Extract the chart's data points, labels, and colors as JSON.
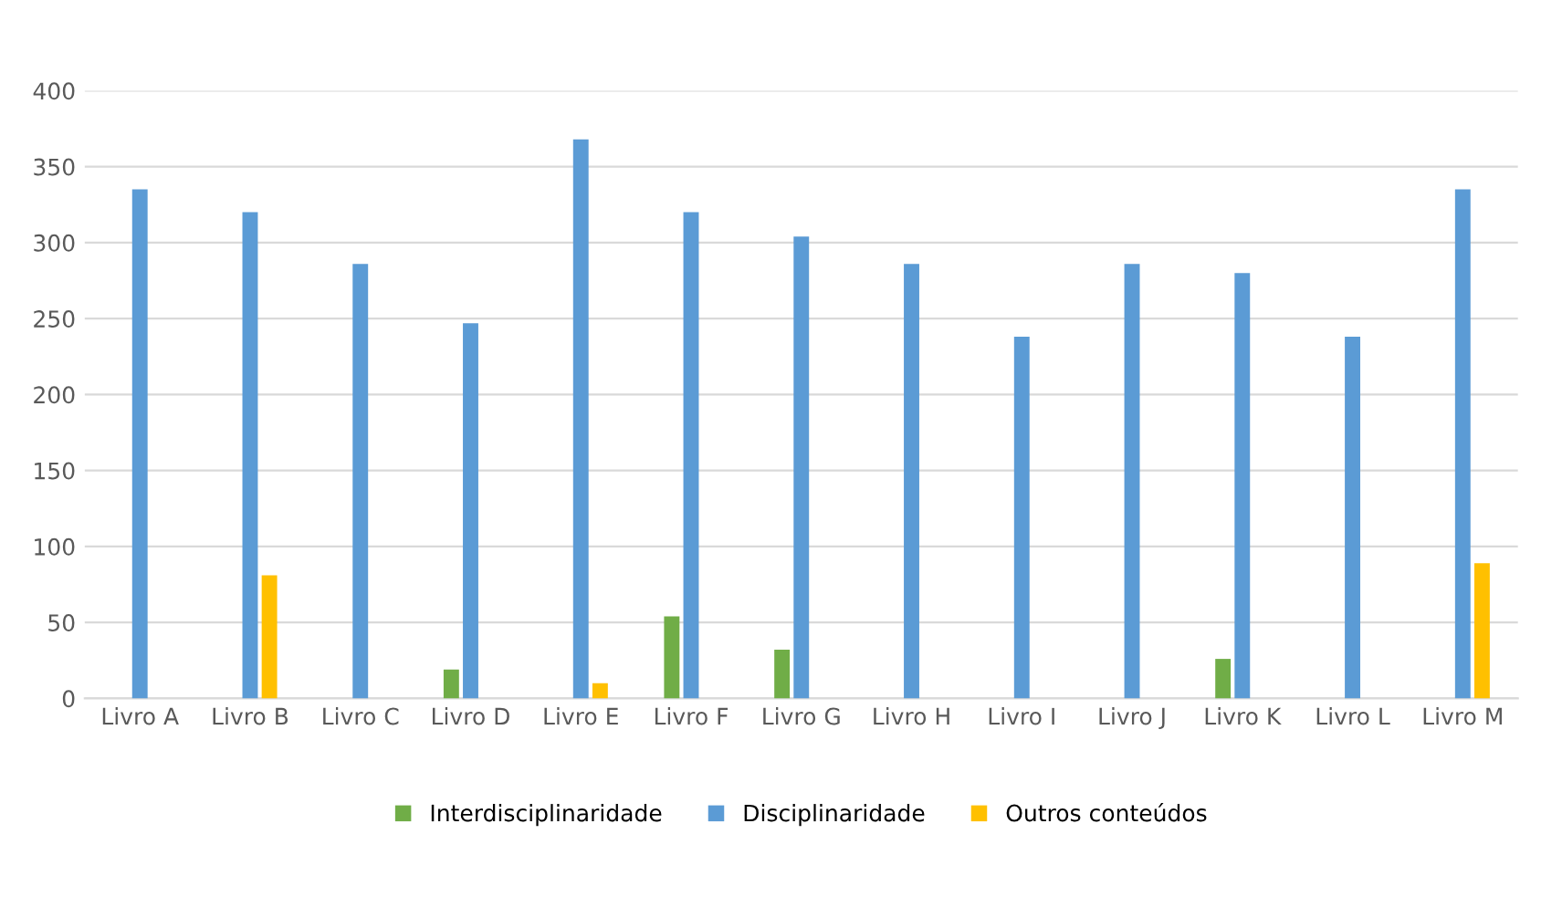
{
  "chart_data": {
    "type": "bar",
    "categories": [
      "Livro A",
      "Livro B",
      "Livro C",
      "Livro D",
      "Livro E",
      "Livro F",
      "Livro G",
      "Livro H",
      "Livro I",
      "Livro J",
      "Livro K",
      "Livro L",
      "Livro M"
    ],
    "series": [
      {
        "name": "Interdisciplinaridade",
        "color": "#70ad47",
        "values": [
          0,
          0,
          0,
          19,
          0,
          54,
          32,
          0,
          0,
          0,
          26,
          0,
          0
        ]
      },
      {
        "name": "Disciplinaridade",
        "color": "#5b9bd5",
        "values": [
          335,
          320,
          286,
          247,
          368,
          320,
          304,
          286,
          238,
          286,
          280,
          238,
          335
        ]
      },
      {
        "name": "Outros conteúdos",
        "color": "#ffc000",
        "values": [
          0,
          81,
          0,
          0,
          10,
          0,
          0,
          0,
          0,
          0,
          0,
          0,
          89
        ]
      }
    ],
    "ylim": [
      0,
      400
    ],
    "yticks": [
      0,
      50,
      100,
      150,
      200,
      250,
      300,
      350,
      400
    ],
    "grid": "y",
    "legend": "bottom"
  }
}
